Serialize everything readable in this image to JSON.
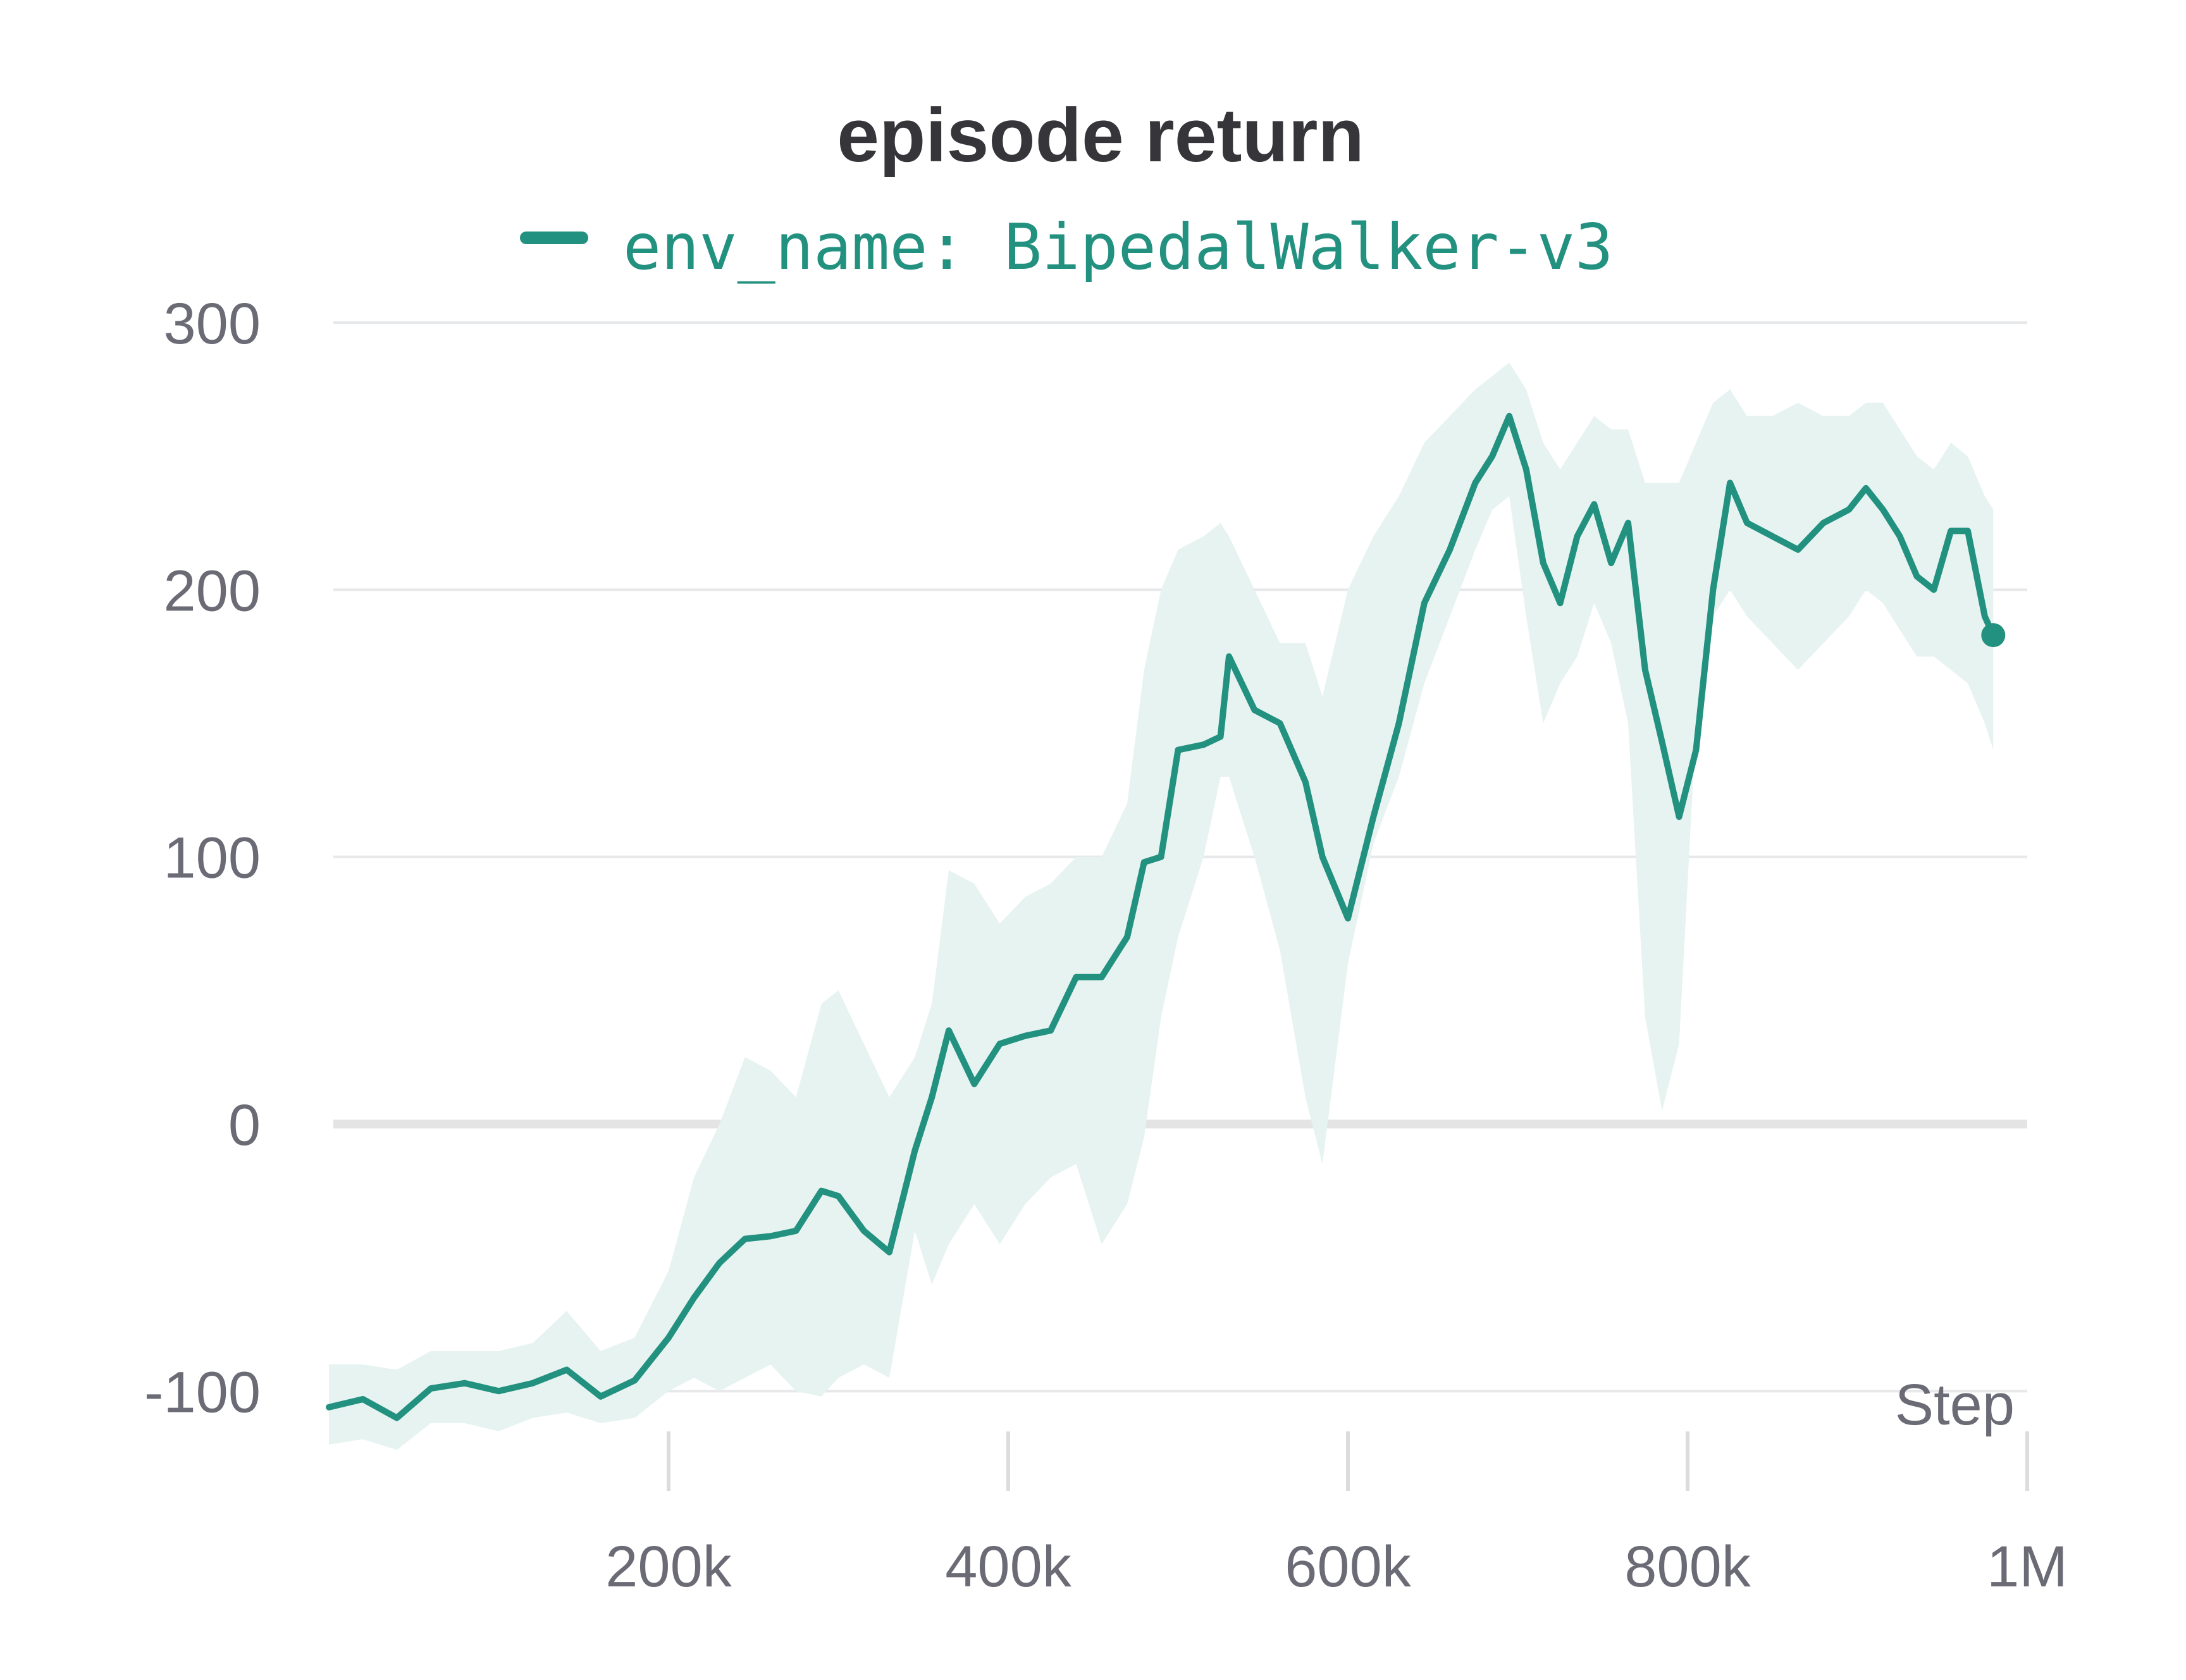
{
  "chart_data": {
    "type": "line",
    "title": "episode return",
    "xlabel": "Step",
    "ylabel": "",
    "xlim": [
      0,
      1000000
    ],
    "ylim": [
      -110,
      300
    ],
    "y_ticks": [
      300,
      200,
      100,
      0,
      -100
    ],
    "y_tick_labels": [
      "300",
      "200",
      "100",
      "0",
      "-100"
    ],
    "x_ticks": [
      200000,
      400000,
      600000,
      800000,
      1000000
    ],
    "x_tick_labels": [
      "200k",
      "400k",
      "600k",
      "800k",
      "1M"
    ],
    "grid": "horizontal",
    "legend": "top",
    "colors": {
      "line": "#23917f",
      "band": "#e6f3f1"
    },
    "series": [
      {
        "name": "env_name: BipedalWalker-v3",
        "x": [
          0,
          20000,
          40000,
          60000,
          80000,
          100000,
          120000,
          140000,
          160000,
          180000,
          200000,
          215000,
          230000,
          245000,
          260000,
          275000,
          290000,
          300000,
          315000,
          330000,
          345000,
          355000,
          365000,
          380000,
          395000,
          410000,
          425000,
          440000,
          455000,
          470000,
          480000,
          490000,
          500000,
          515000,
          525000,
          530000,
          545000,
          560000,
          575000,
          585000,
          600000,
          615000,
          630000,
          645000,
          660000,
          675000,
          685000,
          695000,
          705000,
          715000,
          725000,
          735000,
          745000,
          755000,
          765000,
          775000,
          785000,
          795000,
          805000,
          815000,
          825000,
          835000,
          850000,
          865000,
          880000,
          895000,
          905000,
          915000,
          925000,
          935000,
          945000,
          955000,
          965000,
          975000,
          980000
        ],
        "y": [
          -106,
          -103,
          -110,
          -99,
          -97,
          -100,
          -97,
          -92,
          -102,
          -96,
          -80,
          -65,
          -52,
          -43,
          -42,
          -40,
          -25,
          -27,
          -40,
          -48,
          -10,
          10,
          35,
          15,
          30,
          33,
          35,
          55,
          55,
          70,
          98,
          100,
          140,
          142,
          145,
          175,
          155,
          150,
          128,
          100,
          77,
          115,
          150,
          195,
          215,
          240,
          250,
          265,
          245,
          210,
          195,
          220,
          232,
          210,
          225,
          170,
          143,
          115,
          140,
          200,
          240,
          225,
          220,
          215,
          225,
          230,
          238,
          230,
          220,
          205,
          200,
          222,
          222,
          190,
          183
        ],
        "lower": [
          -120,
          -118,
          -122,
          -112,
          -112,
          -115,
          -110,
          -108,
          -112,
          -110,
          -100,
          -95,
          -100,
          -95,
          -90,
          -100,
          -102,
          -95,
          -90,
          -95,
          -40,
          -60,
          -45,
          -30,
          -45,
          -30,
          -20,
          -15,
          -45,
          -30,
          -5,
          40,
          70,
          100,
          130,
          130,
          100,
          65,
          10,
          -15,
          60,
          105,
          130,
          165,
          190,
          215,
          230,
          235,
          190,
          150,
          165,
          175,
          195,
          180,
          150,
          40,
          5,
          30,
          150,
          190,
          200,
          190,
          180,
          170,
          180,
          190,
          200,
          195,
          185,
          175,
          175,
          170,
          165,
          150,
          140
        ],
        "upper": [
          -90,
          -90,
          -92,
          -85,
          -85,
          -85,
          -82,
          -70,
          -85,
          -80,
          -55,
          -20,
          0,
          25,
          20,
          10,
          45,
          50,
          30,
          10,
          25,
          45,
          95,
          90,
          75,
          85,
          90,
          100,
          100,
          120,
          170,
          200,
          215,
          220,
          225,
          220,
          200,
          180,
          180,
          160,
          200,
          220,
          235,
          255,
          265,
          275,
          280,
          285,
          275,
          255,
          245,
          255,
          265,
          260,
          260,
          240,
          240,
          240,
          255,
          270,
          275,
          265,
          265,
          270,
          265,
          265,
          270,
          270,
          260,
          250,
          245,
          255,
          250,
          235,
          230
        ]
      }
    ]
  }
}
